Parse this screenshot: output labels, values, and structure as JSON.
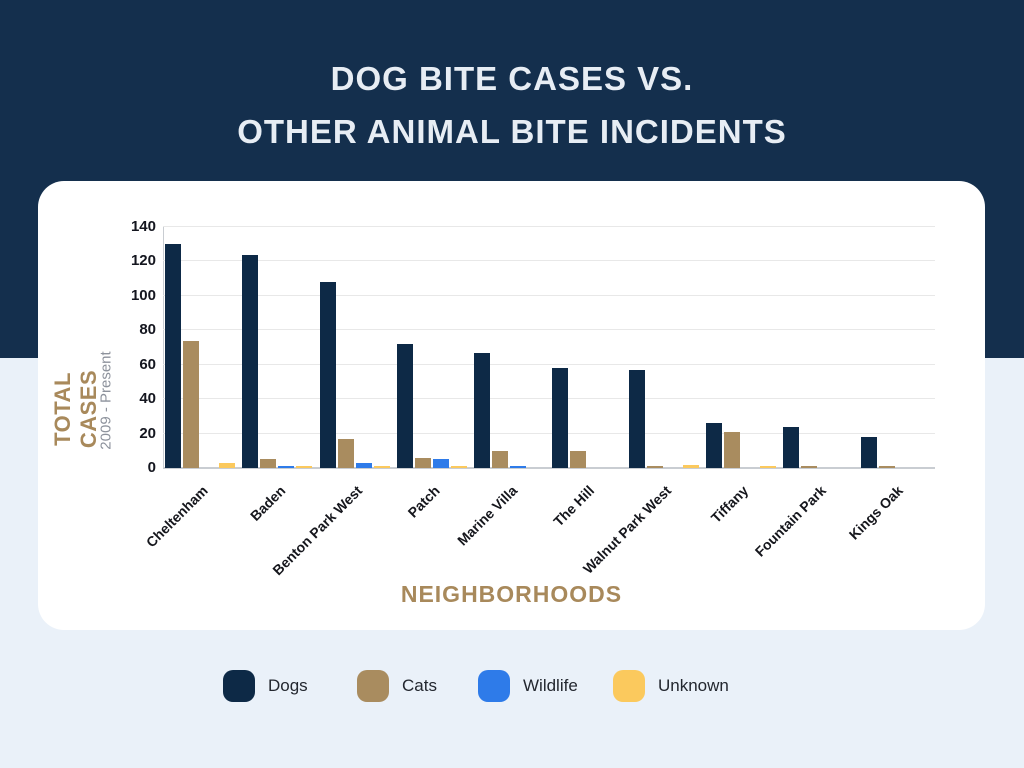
{
  "header": {
    "title_line1": "DOG BITE CASES VS.",
    "title_line2": "OTHER ANIMAL BITE INCIDENTS"
  },
  "chart_data": {
    "type": "bar",
    "title": "Dog Bite Cases vs. Other Animal Bite Incidents",
    "xlabel": "NEIGHBORHOODS",
    "ylabel": "TOTAL CASES",
    "ylabel_subtitle": "2009 - Present",
    "ylim": [
      0,
      140
    ],
    "ytick_step": 20,
    "yticks": [
      0,
      20,
      40,
      60,
      80,
      100,
      120,
      140
    ],
    "grid": true,
    "legend_position": "bottom",
    "categories": [
      "Cheltenham",
      "Baden",
      "Benton Park West",
      "Patch",
      "Marine Villa",
      "The Hill",
      "Walnut Park West",
      "Tiffany",
      "Fountain Park",
      "Kings Oak"
    ],
    "series": [
      {
        "name": "Dogs",
        "color": "#0D2946",
        "values": [
          130,
          124,
          108,
          72,
          67,
          58,
          57,
          26,
          24,
          18
        ]
      },
      {
        "name": "Cats",
        "color": "#A98C5F",
        "values": [
          74,
          5,
          17,
          6,
          10,
          10,
          1,
          21,
          1,
          1
        ]
      },
      {
        "name": "Wildlife",
        "color": "#2E7BE9",
        "values": [
          0,
          1,
          3,
          5,
          1,
          0,
          0,
          0,
          0,
          0
        ]
      },
      {
        "name": "Unknown",
        "color": "#FBC95D",
        "values": [
          3,
          1,
          1,
          1,
          0,
          0,
          2,
          1,
          0,
          0
        ]
      }
    ]
  },
  "legend": {
    "items": [
      {
        "label": "Dogs",
        "color": "#0D2946"
      },
      {
        "label": "Cats",
        "color": "#A98C5F"
      },
      {
        "label": "Wildlife",
        "color": "#2E7BE9"
      },
      {
        "label": "Unknown",
        "color": "#FBC95D"
      }
    ]
  },
  "colors": {
    "header_background": "#142F4D",
    "page_background": "#EAF1F9",
    "card_background": "#FFFFFF",
    "accent_gold": "#A8895B",
    "title_text": "#E7EDF4"
  }
}
